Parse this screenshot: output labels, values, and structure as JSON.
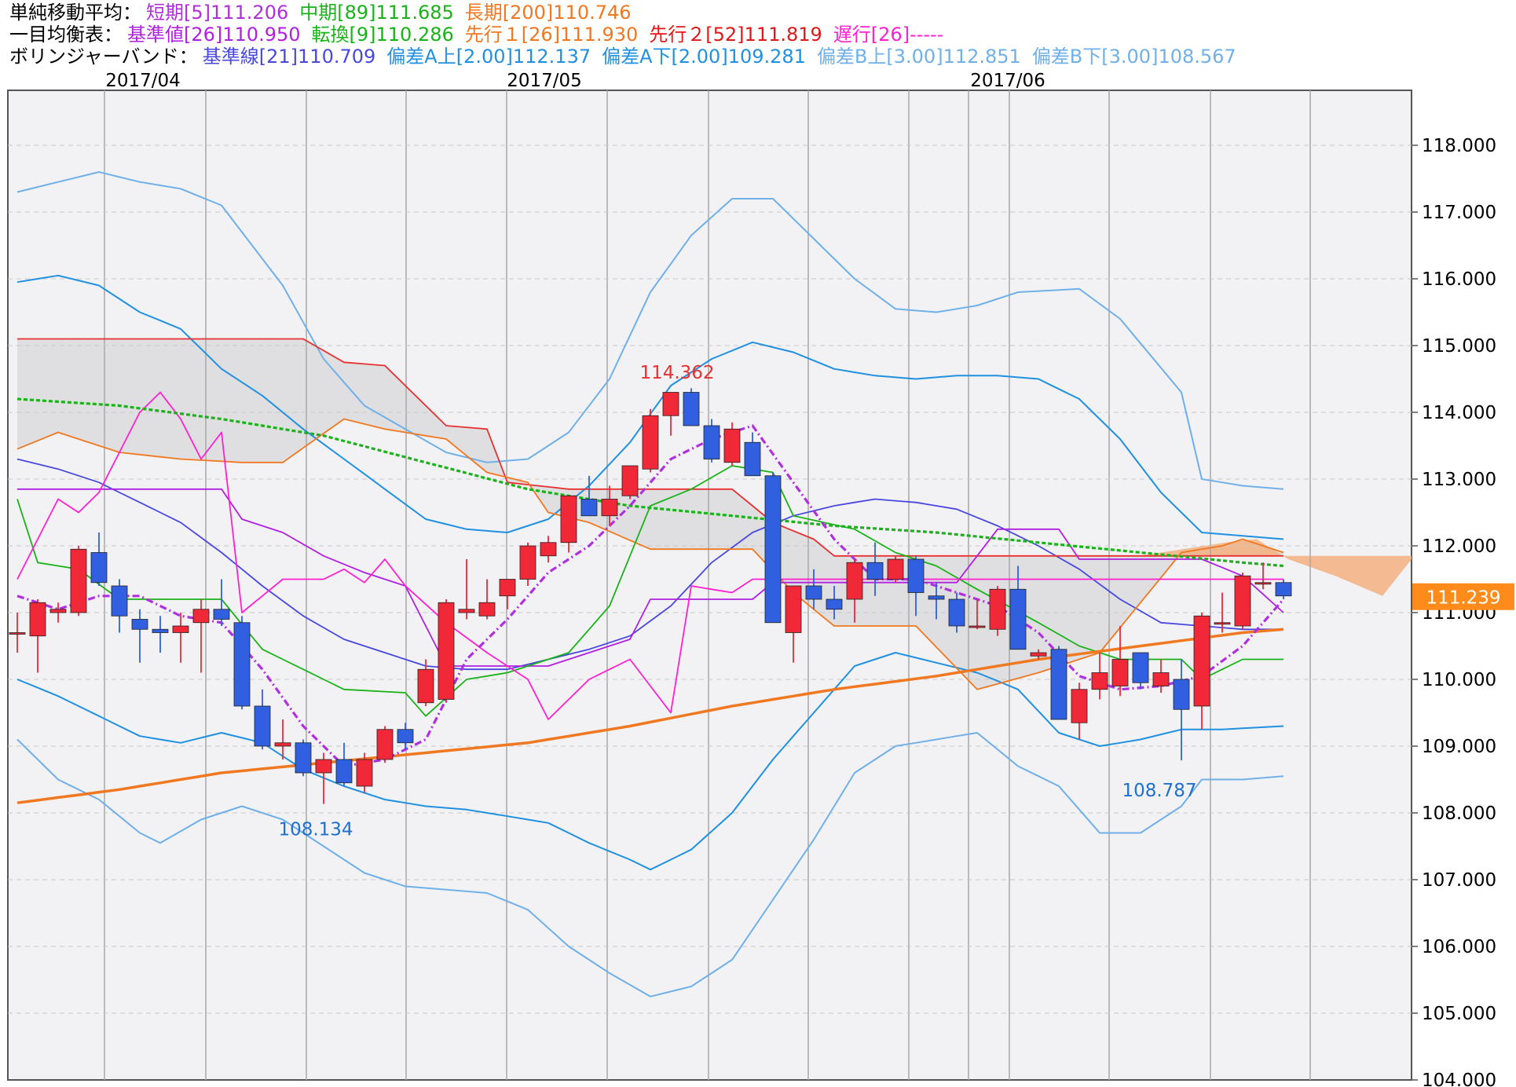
{
  "legend": {
    "sma": {
      "label": "単純移動平均：",
      "items": [
        {
          "text": "短期[5]111.206",
          "color": "#b030d8"
        },
        {
          "text": "中期[89]111.685",
          "color": "#19b319"
        },
        {
          "text": "長期[200]110.746",
          "color": "#f07820"
        }
      ]
    },
    "ichimoku": {
      "label": "一目均衡表：",
      "items": [
        {
          "text": "基準値[26]110.950",
          "color": "#b020e0"
        },
        {
          "text": "転換[9]110.286",
          "color": "#19b319"
        },
        {
          "text": "先行１[26]111.930",
          "color": "#f07820"
        },
        {
          "text": "先行２[52]111.819",
          "color": "#e01818"
        },
        {
          "text": "遅行[26]-----",
          "color": "#ff20d0"
        }
      ]
    },
    "bollinger": {
      "label": "ボリンジャーバンド：",
      "items": [
        {
          "text": "基準線[21]110.709",
          "color": "#4848e0"
        },
        {
          "text": "偏差A上[2.00]112.137",
          "color": "#2090e0"
        },
        {
          "text": "偏差A下[2.00]109.281",
          "color": "#2090e0"
        },
        {
          "text": "偏差B上[3.00]112.851",
          "color": "#70b0e8"
        },
        {
          "text": "偏差B下[3.00]108.567",
          "color": "#70b0e8"
        }
      ]
    }
  },
  "colors": {
    "up": "#f02838",
    "down": "#3060e0",
    "plot_bg": "#f2f2f4",
    "grid": "#c8c8c8",
    "kumo": "#dadadc",
    "kumo_orange": "#f5b080",
    "price_tag": "#ff8c1a"
  },
  "chart_data": {
    "type": "candlestick",
    "ylim": [
      104.0,
      118.8
    ],
    "y_ticks": [
      "118.000",
      "117.000",
      "116.000",
      "115.000",
      "114.000",
      "113.000",
      "112.000",
      "111.000",
      "110.000",
      "109.000",
      "108.000",
      "107.000",
      "106.000",
      "105.000",
      "104.000"
    ],
    "month_labels": [
      "2017/04",
      "2017/05",
      "2017/06"
    ],
    "current_price": "111.239",
    "annotations": {
      "high": {
        "text": "114.362",
        "value": 114.362
      },
      "low1": {
        "text": "108.134",
        "value": 108.134
      },
      "low2": {
        "text": "108.787",
        "value": 108.787
      }
    },
    "candles": [
      [
        110.7,
        111.0,
        110.4,
        110.7
      ],
      [
        110.65,
        111.2,
        110.1,
        111.15
      ],
      [
        111.0,
        111.15,
        110.85,
        111.05
      ],
      [
        111.0,
        112.0,
        110.95,
        111.95
      ],
      [
        111.9,
        112.2,
        111.4,
        111.45
      ],
      [
        111.4,
        111.5,
        110.7,
        110.95
      ],
      [
        110.9,
        111.05,
        110.25,
        110.75
      ],
      [
        110.75,
        110.95,
        110.4,
        110.7
      ],
      [
        110.7,
        111.0,
        110.25,
        110.8
      ],
      [
        110.85,
        111.2,
        110.1,
        111.05
      ],
      [
        111.05,
        111.5,
        110.8,
        110.9
      ],
      [
        110.85,
        110.95,
        109.55,
        109.6
      ],
      [
        109.6,
        109.85,
        108.95,
        109.0
      ],
      [
        109.0,
        109.4,
        108.8,
        109.05
      ],
      [
        109.05,
        109.1,
        108.55,
        108.6
      ],
      [
        108.6,
        108.9,
        108.134,
        108.8
      ],
      [
        108.8,
        109.05,
        108.4,
        108.45
      ],
      [
        108.4,
        108.9,
        108.3,
        108.8
      ],
      [
        108.8,
        109.3,
        108.75,
        109.25
      ],
      [
        109.25,
        109.35,
        108.95,
        109.05
      ],
      [
        109.65,
        110.3,
        109.6,
        110.15
      ],
      [
        109.7,
        111.2,
        109.65,
        111.15
      ],
      [
        111.0,
        111.8,
        110.9,
        111.05
      ],
      [
        110.95,
        111.5,
        110.9,
        111.15
      ],
      [
        111.25,
        111.5,
        111.05,
        111.5
      ],
      [
        111.5,
        112.05,
        111.4,
        112.0
      ],
      [
        111.85,
        112.15,
        111.75,
        112.05
      ],
      [
        112.05,
        112.75,
        111.9,
        112.75
      ],
      [
        112.7,
        113.05,
        112.45,
        112.45
      ],
      [
        112.45,
        112.9,
        112.3,
        112.7
      ],
      [
        112.75,
        113.2,
        112.7,
        113.2
      ],
      [
        113.15,
        114.05,
        113.1,
        113.95
      ],
      [
        113.95,
        114.25,
        113.65,
        114.3
      ],
      [
        114.3,
        114.362,
        113.85,
        113.8
      ],
      [
        113.8,
        113.9,
        113.25,
        113.3
      ],
      [
        113.25,
        113.85,
        113.2,
        113.75
      ],
      [
        113.55,
        113.7,
        113.05,
        113.05
      ],
      [
        113.05,
        113.1,
        110.85,
        110.85
      ],
      [
        110.7,
        111.4,
        110.25,
        111.4
      ],
      [
        111.4,
        111.65,
        111.05,
        111.2
      ],
      [
        111.2,
        111.4,
        110.9,
        111.05
      ],
      [
        111.2,
        111.8,
        110.85,
        111.75
      ],
      [
        111.75,
        112.05,
        111.25,
        111.5
      ],
      [
        111.5,
        111.85,
        111.45,
        111.8
      ],
      [
        111.8,
        111.85,
        110.95,
        111.3
      ],
      [
        111.25,
        111.45,
        110.9,
        111.2
      ],
      [
        111.2,
        111.3,
        110.7,
        110.8
      ],
      [
        110.8,
        111.2,
        110.75,
        110.8
      ],
      [
        110.75,
        111.4,
        110.65,
        111.35
      ],
      [
        111.35,
        111.7,
        110.45,
        110.45
      ],
      [
        110.35,
        110.45,
        110.3,
        110.4
      ],
      [
        110.45,
        110.5,
        109.4,
        109.4
      ],
      [
        109.35,
        109.95,
        109.1,
        109.85
      ],
      [
        109.85,
        110.4,
        109.7,
        110.1
      ],
      [
        109.9,
        110.8,
        109.75,
        110.3
      ],
      [
        110.4,
        110.4,
        109.85,
        109.95
      ],
      [
        109.9,
        110.3,
        109.8,
        110.1
      ],
      [
        110.0,
        110.3,
        108.787,
        109.55
      ],
      [
        109.6,
        111.0,
        109.25,
        110.95
      ],
      [
        110.85,
        111.3,
        110.7,
        110.85
      ],
      [
        110.8,
        111.6,
        110.75,
        111.55
      ],
      [
        111.45,
        111.75,
        111.35,
        111.45
      ],
      [
        111.45,
        111.5,
        111.2,
        111.25
      ]
    ]
  }
}
